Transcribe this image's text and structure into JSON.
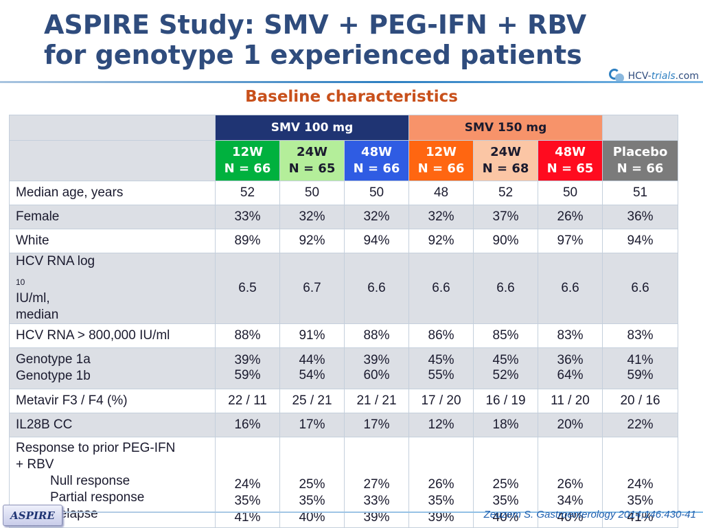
{
  "header": {
    "title_line1": "ASPIRE Study: SMV + PEG-IFN + RBV",
    "title_line2": "for genotype 1 experienced patients",
    "subtitle": "Baseline characteristics",
    "logo": {
      "part1": "HCV-",
      "part2": "trials",
      "part3": ".com"
    }
  },
  "colors": {
    "title": "#2f4c7d",
    "subtitle": "#c8501b",
    "smv100_group": "#1f3473",
    "smv150_group": "#f7936a"
  },
  "table": {
    "groups": [
      {
        "label": "SMV 100 mg"
      },
      {
        "label": "SMV 150 mg"
      }
    ],
    "arms": [
      {
        "duration": "12W",
        "n": "N = 66",
        "color": "#00b13e"
      },
      {
        "duration": "24W",
        "n": "N = 65",
        "color": "#b4ee9a"
      },
      {
        "duration": "48W",
        "n": "N = 66",
        "color": "#2f5ce3"
      },
      {
        "duration": "12W",
        "n": "N = 66",
        "color": "#ff6611"
      },
      {
        "duration": "24W",
        "n": "N = 68",
        "color": "#fbc6a5"
      },
      {
        "duration": "48W",
        "n": "N = 65",
        "color": "#ff0b1f"
      },
      {
        "duration": "Placebo",
        "n": "N = 66",
        "color": "#7b7b7b"
      }
    ],
    "rows": {
      "median_age": {
        "label": "Median age, years",
        "values": [
          "52",
          "50",
          "50",
          "48",
          "52",
          "50",
          "51"
        ]
      },
      "female": {
        "label": "Female",
        "values": [
          "33%",
          "32%",
          "32%",
          "32%",
          "37%",
          "26%",
          "36%"
        ]
      },
      "white": {
        "label": "White",
        "values": [
          "89%",
          "92%",
          "94%",
          "92%",
          "90%",
          "97%",
          "94%"
        ]
      },
      "hcv_rna_log": {
        "label_a": "HCV RNA log",
        "label_sub": "10",
        "label_b": " IU/ml,",
        "label_c": "median",
        "values": [
          "6.5",
          "6.7",
          "6.6",
          "6.6",
          "6.6",
          "6.6",
          "6.6"
        ]
      },
      "hcv_rna_800k": {
        "label": "HCV RNA > 800,000 IU/ml",
        "values": [
          "88%",
          "91%",
          "88%",
          "86%",
          "85%",
          "83%",
          "83%"
        ]
      },
      "genotype": {
        "label_1a": "Genotype 1a",
        "label_1b": "Genotype 1b",
        "values_1a": [
          "39%",
          "44%",
          "39%",
          "45%",
          "45%",
          "36%",
          "41%"
        ],
        "values_1b": [
          "59%",
          "54%",
          "60%",
          "55%",
          "52%",
          "64%",
          "59%"
        ]
      },
      "metavir": {
        "label": "Metavir F3 / F4 (%)",
        "values": [
          "22 / 11",
          "25 / 21",
          "21 / 21",
          "17 / 20",
          "16 / 19",
          "11 / 20",
          "20 / 16"
        ]
      },
      "il28b": {
        "label": "IL28B CC",
        "values": [
          "16%",
          "17%",
          "17%",
          "12%",
          "18%",
          "20%",
          "22%"
        ]
      },
      "prior_response": {
        "label_line1": "Response to prior PEG-IFN",
        "label_line2": "+ RBV",
        "null_label": "Null response",
        "partial_label": "Partial response",
        "relapse_label": "Relapse",
        "null_values": [
          "24%",
          "25%",
          "27%",
          "26%",
          "25%",
          "26%",
          "24%"
        ],
        "partial_values": [
          "35%",
          "35%",
          "33%",
          "35%",
          "35%",
          "34%",
          "35%"
        ],
        "relapse_values": [
          "41%",
          "40%",
          "39%",
          "39%",
          "40%",
          "40%",
          "41%"
        ]
      }
    }
  },
  "footer": {
    "badge": "ASPIRE",
    "citation": "Zeuzem S. Gastroenterology 2014;146:430-41"
  }
}
